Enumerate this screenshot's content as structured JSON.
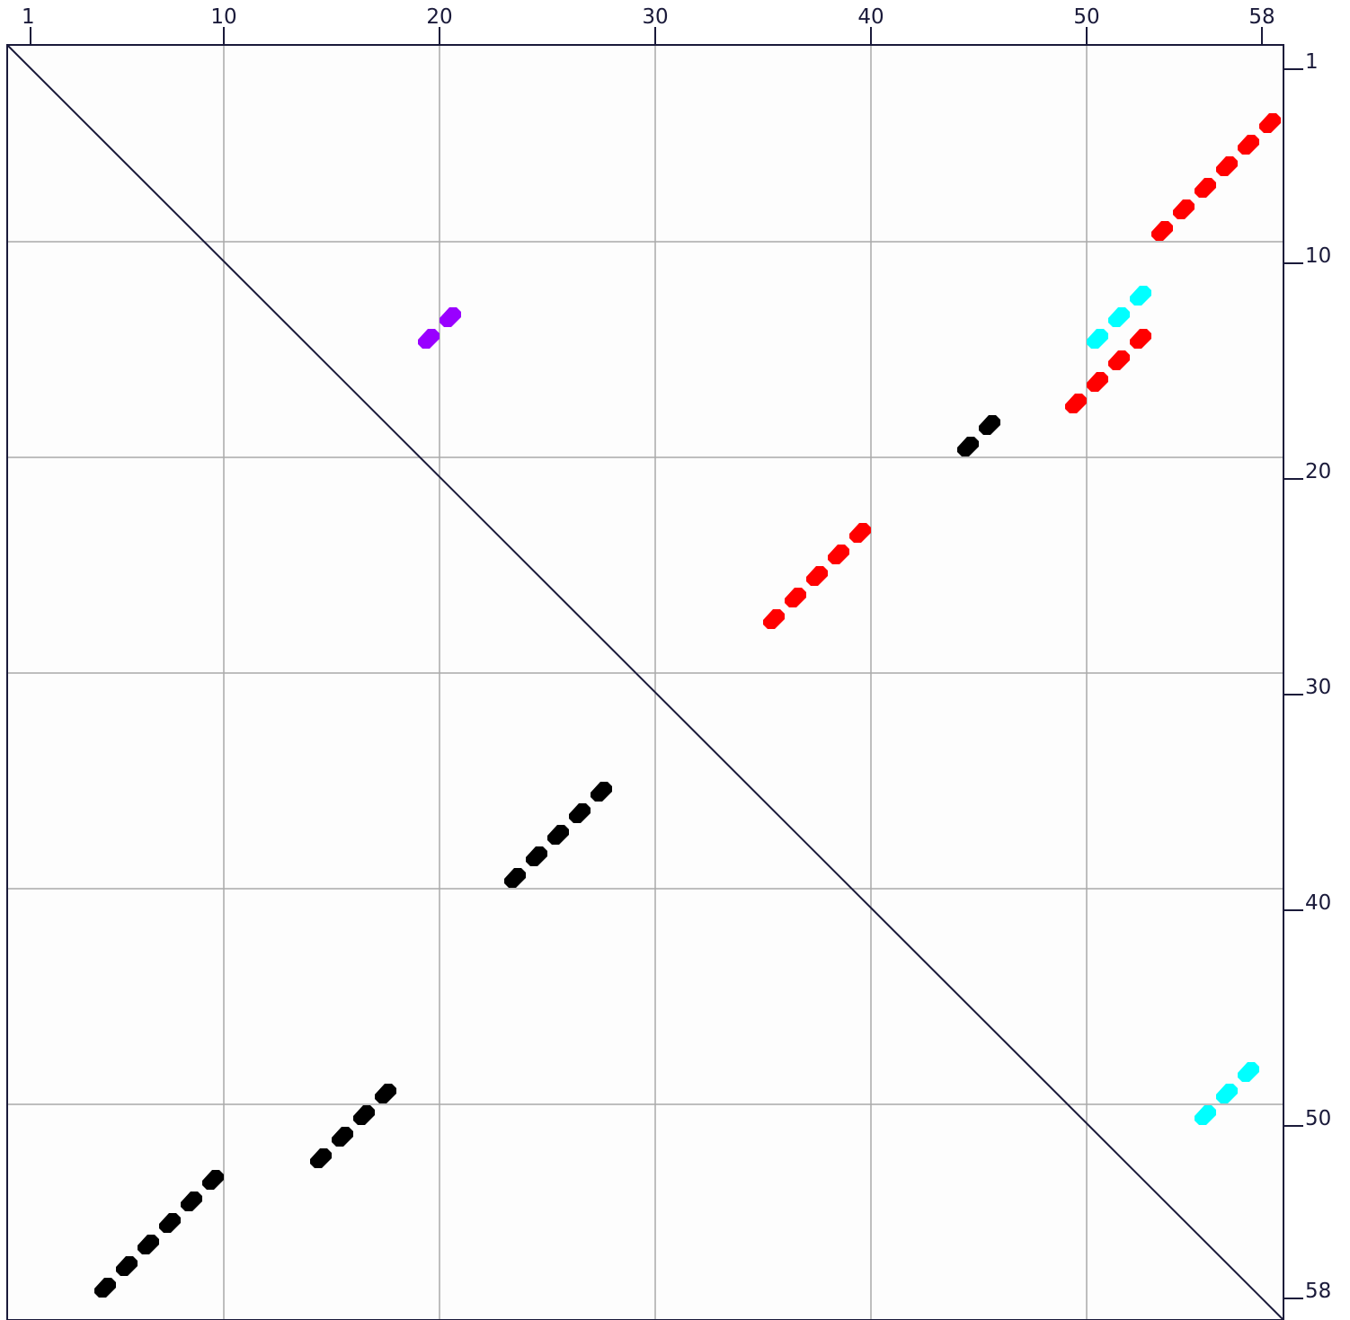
{
  "chart_data": {
    "type": "scatter",
    "description_free": true,
    "axis_range": [
      1,
      58
    ],
    "top_ticks": [
      1,
      10,
      20,
      30,
      40,
      50,
      58
    ],
    "right_ticks": [
      1,
      10,
      20,
      30,
      40,
      50,
      58
    ],
    "grid_positions": [
      10,
      20,
      30,
      40,
      50
    ],
    "grid": true,
    "diagonal": true,
    "colors": {
      "background": "#fdfdfd",
      "frame": "#1a1a3a",
      "grid": "#aaaaaa",
      "diagonal": "#1a1a3a",
      "red": "#ff0000",
      "black": "#000000",
      "cyan": "#00ffff",
      "purple": "#9900ff"
    },
    "series": [
      {
        "color": "red",
        "points": [
          [
            53,
            9
          ],
          [
            54,
            8
          ],
          [
            55,
            7
          ],
          [
            56,
            6
          ],
          [
            57,
            5
          ],
          [
            58,
            4
          ]
        ]
      },
      {
        "color": "red",
        "points": [
          [
            49,
            17
          ],
          [
            50,
            16
          ],
          [
            51,
            15
          ],
          [
            52,
            14
          ]
        ]
      },
      {
        "color": "red",
        "points": [
          [
            35,
            27
          ],
          [
            36,
            26
          ],
          [
            37,
            25
          ],
          [
            38,
            24
          ],
          [
            39,
            23
          ]
        ]
      },
      {
        "color": "cyan",
        "points": [
          [
            50,
            14
          ],
          [
            51,
            13
          ],
          [
            52,
            12
          ]
        ]
      },
      {
        "color": "cyan",
        "points": [
          [
            55,
            50
          ],
          [
            56,
            49
          ],
          [
            57,
            48
          ]
        ]
      },
      {
        "color": "purple",
        "points": [
          [
            19,
            14
          ],
          [
            20,
            13
          ]
        ]
      },
      {
        "color": "black",
        "points": [
          [
            44,
            19
          ],
          [
            45,
            18
          ]
        ]
      },
      {
        "color": "black",
        "points": [
          [
            23,
            39
          ],
          [
            24,
            38
          ],
          [
            25,
            37
          ],
          [
            26,
            36
          ],
          [
            27,
            35
          ]
        ]
      },
      {
        "color": "black",
        "points": [
          [
            14,
            52
          ],
          [
            15,
            51
          ],
          [
            16,
            50
          ],
          [
            17,
            49
          ]
        ]
      },
      {
        "color": "black",
        "points": [
          [
            4,
            58
          ],
          [
            5,
            57
          ],
          [
            6,
            56
          ],
          [
            7,
            55
          ],
          [
            8,
            54
          ],
          [
            9,
            53
          ]
        ]
      }
    ]
  },
  "labels": {
    "top": [
      "1",
      "10",
      "20",
      "30",
      "40",
      "50",
      "58"
    ],
    "right": [
      "1",
      "10",
      "20",
      "30",
      "40",
      "50",
      "58"
    ]
  }
}
